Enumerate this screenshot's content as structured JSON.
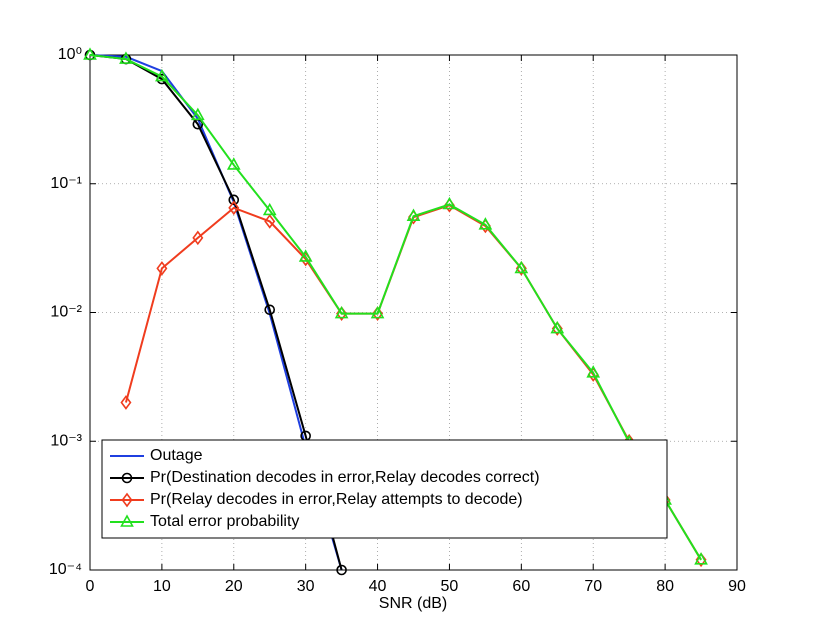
{
  "chart_data": {
    "type": "line",
    "x_label": "SNR (dB)",
    "x": [
      0,
      5,
      10,
      15,
      20,
      25,
      30,
      35,
      40,
      45,
      50,
      55,
      60,
      65,
      70,
      75,
      80,
      85
    ],
    "xlim": [
      0,
      90
    ],
    "xticks": [
      0,
      10,
      20,
      30,
      40,
      50,
      60,
      70,
      80,
      90
    ],
    "ylim": [
      0.0001,
      1
    ],
    "log_y": true,
    "grid": true,
    "legend": "lower left",
    "yticks": [
      {
        "value": 0.0001,
        "label": "10⁻⁴"
      },
      {
        "value": 0.001,
        "label": "10⁻³"
      },
      {
        "value": 0.01,
        "label": "10⁻²"
      },
      {
        "value": 0.1,
        "label": "10⁻¹"
      },
      {
        "value": 1,
        "label": "10⁰"
      }
    ],
    "series": [
      {
        "name": "Outage",
        "color": "#1f3fe0",
        "marker": "none",
        "values": [
          1,
          0.97,
          0.75,
          0.32,
          0.072,
          0.0098,
          0.0009,
          0.0001,
          null,
          null,
          null,
          null,
          null,
          null,
          null,
          null,
          null,
          null
        ]
      },
      {
        "name": "Pr(Destination decodes in error,Relay decodes correct)",
        "color": "#000000",
        "marker": "circle",
        "values": [
          1,
          0.93,
          0.65,
          0.29,
          0.075,
          0.0105,
          0.0011,
          0.0001,
          null,
          null,
          null,
          null,
          null,
          null,
          null,
          null,
          null,
          null
        ]
      },
      {
        "name": "Pr(Relay decodes in error,Relay attempts to decode)",
        "color": "#f03c1e",
        "marker": "diamond",
        "values": [
          null,
          0.002,
          0.022,
          0.038,
          0.065,
          0.051,
          0.026,
          0.0098,
          0.0098,
          0.055,
          0.068,
          0.047,
          0.022,
          0.0075,
          0.0033,
          0.001,
          0.00035,
          0.00012
        ]
      },
      {
        "name": "Total error probability",
        "color": "#22e01e",
        "marker": "triangle",
        "values": [
          1,
          0.93,
          0.68,
          0.34,
          0.14,
          0.062,
          0.027,
          0.0098,
          0.0098,
          0.056,
          0.069,
          0.048,
          0.022,
          0.0075,
          0.0034,
          0.00098,
          0.00035,
          0.00012
        ]
      }
    ]
  }
}
